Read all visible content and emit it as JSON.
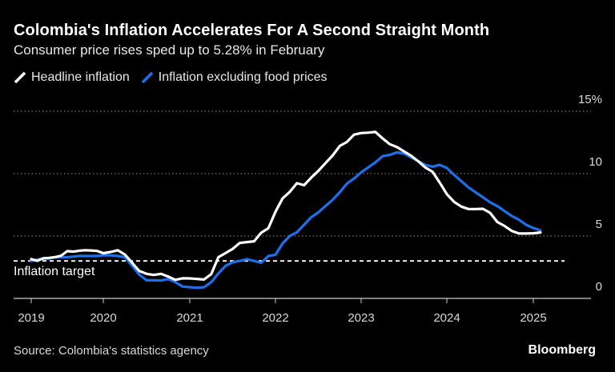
{
  "header": {
    "title": "Colombia's Inflation Accelerates For A Second Straight Month",
    "subtitle": "Consumer price rises sped up to 5.28% in February"
  },
  "footer": {
    "source": "Source: Colombia's statistics agency",
    "logo": "Bloomberg"
  },
  "colors": {
    "headline": "#ffffff",
    "ex_food": "#1f6fed",
    "background": "#000000"
  },
  "chart_data": {
    "type": "line",
    "title": "Colombia's Inflation Accelerates For A Second Straight Month",
    "subtitle": "Consumer price rises sped up to 5.28% in February",
    "x_start": "2019-01",
    "x_frequency": "monthly",
    "x_ticks": [
      "2019",
      "2020",
      "2021",
      "2022",
      "2023",
      "2024",
      "2025"
    ],
    "y_ticks": [
      "0",
      "5",
      "10",
      "15%"
    ],
    "ylim": [
      0,
      15
    ],
    "grid": "horizontal dotted",
    "legend_position": "top-left",
    "annotation": {
      "label": "Inflation target",
      "value": 3
    },
    "series": [
      {
        "name": "Headline inflation",
        "color": "#ffffff",
        "values": [
          3.15,
          3.01,
          3.21,
          3.25,
          3.31,
          3.43,
          3.79,
          3.75,
          3.82,
          3.86,
          3.84,
          3.8,
          3.62,
          3.72,
          3.86,
          3.51,
          2.85,
          2.19,
          1.97,
          1.88,
          1.97,
          1.75,
          1.49,
          1.61,
          1.6,
          1.56,
          1.51,
          1.95,
          3.3,
          3.63,
          3.97,
          4.44,
          4.51,
          4.58,
          5.26,
          5.62,
          6.94,
          8.01,
          8.53,
          9.23,
          9.07,
          9.67,
          10.21,
          10.84,
          11.44,
          12.22,
          12.53,
          13.12,
          13.25,
          13.28,
          13.34,
          12.82,
          12.36,
          12.13,
          11.78,
          11.43,
          10.99,
          10.48,
          10.15,
          9.28,
          8.35,
          7.74,
          7.36,
          7.16,
          7.16,
          7.18,
          6.86,
          6.12,
          5.81,
          5.41,
          5.2,
          5.2,
          5.22,
          5.28
        ]
      },
      {
        "name": "Inflation excluding food prices",
        "color": "#1f6fed",
        "values": [
          3.0,
          3.1,
          3.2,
          3.2,
          3.3,
          3.3,
          3.3,
          3.35,
          3.4,
          3.4,
          3.4,
          3.4,
          3.45,
          3.45,
          3.4,
          3.3,
          2.6,
          1.9,
          1.45,
          1.45,
          1.43,
          1.55,
          1.3,
          0.95,
          0.9,
          0.85,
          0.9,
          1.3,
          2.0,
          2.6,
          2.9,
          3.0,
          3.15,
          3.0,
          2.85,
          3.4,
          3.5,
          4.4,
          5.0,
          5.3,
          5.9,
          6.5,
          6.9,
          7.4,
          7.9,
          8.5,
          9.2,
          9.6,
          10.1,
          10.5,
          10.9,
          11.4,
          11.5,
          11.7,
          11.6,
          11.3,
          11.0,
          10.7,
          10.55,
          10.7,
          10.45,
          9.9,
          9.4,
          8.9,
          8.5,
          8.1,
          7.7,
          7.4,
          7.0,
          6.6,
          6.3,
          5.9,
          5.64,
          5.45
        ]
      }
    ]
  }
}
